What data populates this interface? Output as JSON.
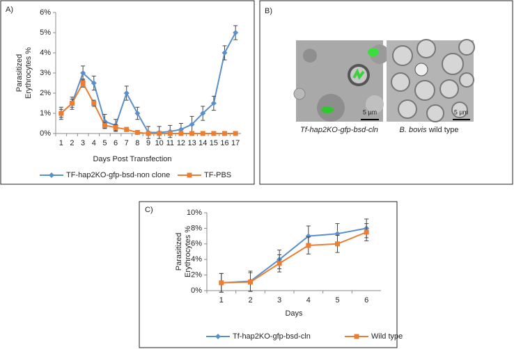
{
  "chart_data": [
    {
      "type": "line",
      "panel_label": "A)",
      "xlabel": "Days Post Transfection",
      "ylabel": [
        "Parasitized",
        "Erythrocytes %"
      ],
      "categories": [
        "1",
        "2",
        "3",
        "4",
        "5",
        "6",
        "7",
        "8",
        "9",
        "10",
        "11",
        "12",
        "13",
        "14",
        "15",
        "16",
        "17"
      ],
      "series": [
        {
          "name": "TF-hap2KO-gfp-bsd-non clone",
          "color": "#5b8fc9",
          "marker": "diamond",
          "values": [
            1,
            1.5,
            3,
            2.5,
            0.6,
            0.4,
            2,
            1,
            0.05,
            0.05,
            0.1,
            0.2,
            0.45,
            1,
            1.5,
            4,
            5
          ],
          "errors": [
            0.3,
            0.3,
            0.35,
            0.35,
            0.35,
            0.3,
            0.35,
            0.3,
            0.3,
            0.3,
            0.3,
            0.3,
            0.4,
            0.35,
            0.35,
            0.35,
            0.35
          ]
        },
        {
          "name": "TF-PBS",
          "color": "#ed7d31",
          "marker": "square",
          "values": [
            1,
            1.5,
            2.5,
            1.5,
            0.4,
            0.3,
            0.2,
            0.05,
            0,
            0,
            0,
            0,
            0,
            0,
            0,
            0,
            0
          ],
          "errors": [
            0.2,
            0.2,
            0.2,
            0.15,
            0.15,
            0.15,
            0.1,
            0.1,
            0.1,
            0.1,
            0.1,
            0.1,
            0.1,
            0.1,
            0.1,
            0.1,
            0.1
          ]
        }
      ],
      "ylim": [
        0,
        6
      ],
      "yticks": [
        {
          "value": 0,
          "label": "0%"
        },
        {
          "value": 1,
          "label": "1%"
        },
        {
          "value": 2,
          "label": "2%"
        },
        {
          "value": 3,
          "label": "3%"
        },
        {
          "value": 4,
          "label": "4%"
        },
        {
          "value": 5,
          "label": "5%"
        },
        {
          "value": 6,
          "label": "6%"
        }
      ],
      "grid": false,
      "legend": "bottom"
    },
    {
      "type": "line",
      "panel_label": "C)",
      "xlabel": "Days",
      "ylabel": [
        "Parasitized",
        "Erythrocytes %"
      ],
      "categories": [
        "1",
        "2",
        "3",
        "4",
        "5",
        "6"
      ],
      "series": [
        {
          "name": "Tf-hap2KO-gfp-bsd-cln",
          "color": "#5b8fc9",
          "marker": "diamond",
          "values": [
            1,
            1.2,
            4,
            7,
            7.3,
            8
          ],
          "errors": [
            1.2,
            1.3,
            1.2,
            1.3,
            1.3,
            1.2
          ]
        },
        {
          "name": "Wild type",
          "color": "#ed7d31",
          "marker": "square",
          "values": [
            1,
            1.1,
            3.5,
            5.8,
            6,
            7.5
          ],
          "errors": [
            1.2,
            1.2,
            1.1,
            1.1,
            1.1,
            1.1
          ]
        }
      ],
      "ylim": [
        0,
        10
      ],
      "yticks": [
        {
          "value": 0,
          "label": "0%"
        },
        {
          "value": 2,
          "label": "2%"
        },
        {
          "value": 4,
          "label": "4%"
        },
        {
          "value": 6,
          "label": "6%"
        },
        {
          "value": 8,
          "label": "8%"
        },
        {
          "value": 10,
          "label": "10%"
        }
      ],
      "grid": false,
      "legend": "bottom"
    }
  ],
  "panel_b": {
    "label": "B)",
    "left_caption": "Tf-hap2KO-gfp-bsd-cln",
    "right_caption_italic": "B. bovis",
    "right_caption_rest": "wild type",
    "scale_left": "5 µm",
    "scale_right": "5 µm"
  }
}
